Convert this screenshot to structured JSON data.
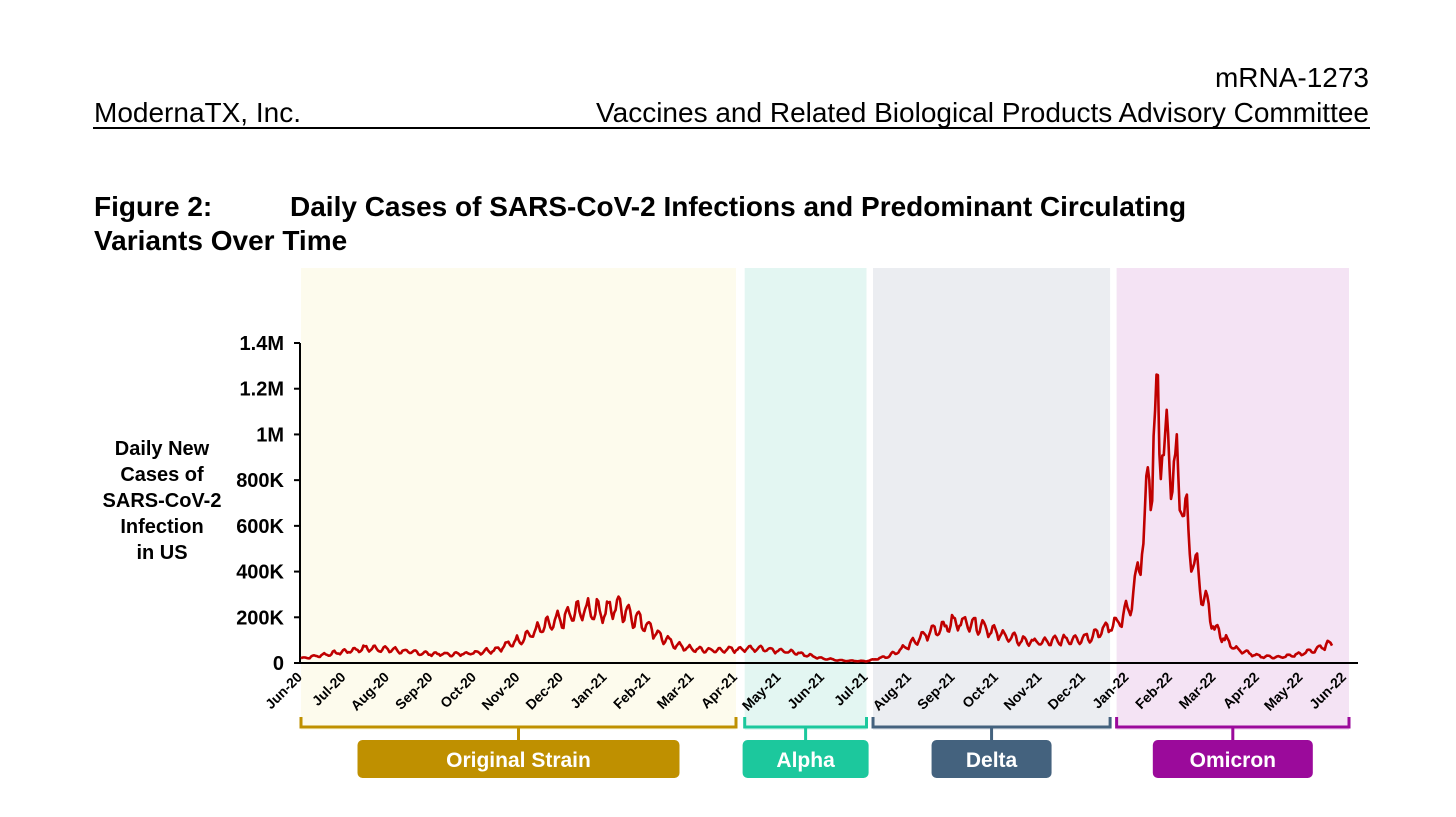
{
  "header": {
    "product": "mRNA-1273",
    "company": "ModernaTX, Inc.",
    "committee": "Vaccines and Related Biological Products Advisory Committee"
  },
  "figure": {
    "number": "Figure 2:",
    "title_line1": "Daily Cases of SARS-CoV-2 Infections and Predominant Circulating",
    "title_line2": "Variants Over Time"
  },
  "chart_data": {
    "type": "line",
    "ylabel": [
      "Daily New",
      "Cases of",
      "SARS-CoV-2",
      "Infection",
      "in US"
    ],
    "xlabel": "",
    "ylim": [
      0,
      1400000
    ],
    "y_ticks": [
      {
        "value": 0,
        "label": "0"
      },
      {
        "value": 200000,
        "label": "200K"
      },
      {
        "value": 400000,
        "label": "400K"
      },
      {
        "value": 600000,
        "label": "600K"
      },
      {
        "value": 800000,
        "label": "800K"
      },
      {
        "value": 1000000,
        "label": "1M"
      },
      {
        "value": 1200000,
        "label": "1.2M"
      },
      {
        "value": 1400000,
        "label": "1.4M"
      }
    ],
    "x_ticks": [
      "Jun-20",
      "Jul-20",
      "Aug-20",
      "Sep-20",
      "Oct-20",
      "Nov-20",
      "Dec-20",
      "Jan-21",
      "Feb-21",
      "Mar-21",
      "Apr-21",
      "May-21",
      "Jun-21",
      "Jul-21",
      "Aug-21",
      "Sep-21",
      "Oct-21",
      "Nov-21",
      "Dec-21",
      "Jan-22",
      "Feb-22",
      "Mar-22",
      "Apr-22",
      "May-22",
      "Jun-22"
    ],
    "line_color": "#c00000",
    "variants": [
      {
        "name": "Original Strain",
        "start_month": 0,
        "end_month": 10.0,
        "bg": "#fdfbed",
        "label_bg": "#bf9000",
        "bracket": "#bf9000"
      },
      {
        "name": "Alpha",
        "start_month": 10.2,
        "end_month": 13.0,
        "bg": "#e3f6f2",
        "label_bg": "#1cc89d",
        "bracket": "#1cc89d"
      },
      {
        "name": "Delta",
        "start_month": 13.15,
        "end_month": 18.6,
        "bg": "#ebedf1",
        "label_bg": "#44627e",
        "bracket": "#44627e"
      },
      {
        "name": "Omicron",
        "start_month": 18.75,
        "end_month": 24.6,
        "bg": "#f4e3f4",
        "label_bg": "#9b0a9b",
        "bracket": "#9b0a9b"
      }
    ],
    "series": [
      {
        "months": [
          0,
          0.5,
          1,
          1.5,
          2,
          2.5,
          3,
          3.5,
          4,
          4.5,
          5,
          5.5,
          6,
          6.3,
          6.6,
          7,
          7.3,
          7.6,
          8,
          8.3,
          8.6,
          9,
          9.5,
          10,
          10.5,
          11,
          11.5,
          12,
          12.5,
          13,
          13.5,
          14,
          14.5,
          15,
          15.3,
          15.7,
          16,
          16.5,
          17,
          17.5,
          18,
          18.3,
          18.6,
          18.9,
          19.1,
          19.3,
          19.5,
          19.7,
          19.9,
          20.1,
          20.3,
          20.5,
          20.8,
          21,
          21.5,
          22,
          22.5,
          23,
          23.5,
          23.7
        ],
        "values": [
          20000,
          35000,
          50000,
          65000,
          60000,
          48000,
          40000,
          38000,
          45000,
          60000,
          100000,
          150000,
          190000,
          220000,
          235000,
          225000,
          250000,
          210000,
          160000,
          110000,
          80000,
          60000,
          55000,
          60000,
          65000,
          55000,
          40000,
          20000,
          10000,
          8000,
          30000,
          80000,
          140000,
          175000,
          180000,
          160000,
          130000,
          100000,
          90000,
          100000,
          110000,
          130000,
          160000,
          200000,
          260000,
          450000,
          800000,
          1100000,
          900000,
          850000,
          700000,
          450000,
          280000,
          150000,
          60000,
          30000,
          25000,
          40000,
          70000,
          90000
        ]
      }
    ]
  }
}
